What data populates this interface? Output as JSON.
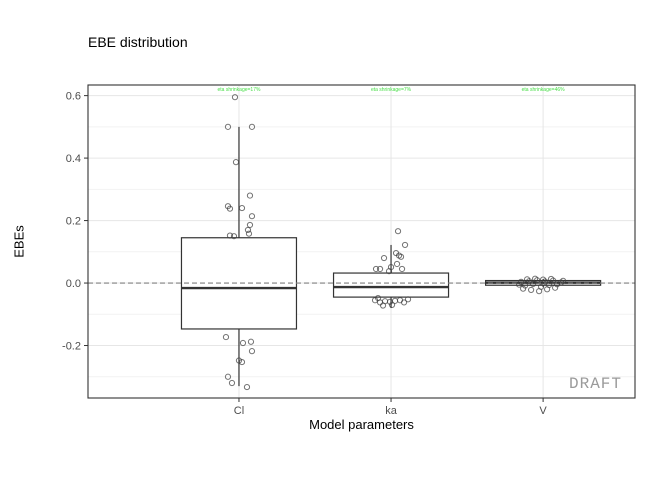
{
  "title": "EBE distribution",
  "watermark": "DRAFT",
  "colors": {
    "box_stroke": "#333333",
    "box_fill": "#ffffff",
    "median_stroke": "#333333",
    "point_stroke": "#3d3d3d",
    "grid_major": "#e6e6e6",
    "grid_minor": "#f2f2f2",
    "panel_border": "#333333",
    "panel_bg": "#ffffff",
    "zero_line": "#7f7f7f",
    "tick_label": "#4d4d4d",
    "tick_mark": "#333333",
    "shrinkage_text": "#44dd44",
    "watermark_color": "#9a9a9a"
  },
  "chart_data": {
    "type": "boxplot",
    "title": "EBE distribution",
    "xlabel": "Model parameters",
    "ylabel": "EBEs",
    "categories": [
      "Cl",
      "ka",
      "V"
    ],
    "ylim": [
      -0.368,
      0.634
    ],
    "grid": true,
    "legend": "none",
    "y_major_ticks": [
      {
        "value": 0.6,
        "label": "0.6"
      },
      {
        "value": 0.4,
        "label": "0.4"
      },
      {
        "value": 0.2,
        "label": "0.2"
      },
      {
        "value": 0.0,
        "label": "0.0"
      },
      {
        "value": -0.2,
        "label": "-0.2"
      }
    ],
    "y_minor_ticks": [
      0.5,
      0.3,
      0.1,
      -0.1,
      -0.3
    ],
    "reference_line": {
      "y": 0,
      "style": "dashed"
    },
    "series": [
      {
        "name": "Cl",
        "q1": -0.147,
        "median": -0.016,
        "q3": 0.145,
        "whisker_low": -0.33,
        "whisker_high": 0.5,
        "shrinkage_label": "eta shrinkage=17%",
        "points_dx_value": [
          [
            -4,
            0.595
          ],
          [
            -11,
            0.5
          ],
          [
            13,
            0.5
          ],
          [
            -3,
            0.387
          ],
          [
            11,
            0.28
          ],
          [
            -11,
            0.246
          ],
          [
            -9,
            0.238
          ],
          [
            3,
            0.24
          ],
          [
            13,
            0.214
          ],
          [
            11,
            0.186
          ],
          [
            9,
            0.17
          ],
          [
            -9,
            0.152
          ],
          [
            -5,
            0.15
          ],
          [
            10,
            0.158
          ],
          [
            -13,
            -0.173
          ],
          [
            4,
            -0.192
          ],
          [
            12,
            -0.188
          ],
          [
            13,
            -0.218
          ],
          [
            0,
            -0.248
          ],
          [
            3,
            -0.253
          ],
          [
            -11,
            -0.3
          ],
          [
            -7,
            -0.32
          ],
          [
            8,
            -0.333
          ]
        ]
      },
      {
        "name": "ka",
        "q1": -0.045,
        "median": -0.013,
        "q3": 0.032,
        "whisker_low": -0.08,
        "whisker_high": 0.122,
        "shrinkage_label": "eta shrinkage=7%",
        "points_dx_value": [
          [
            7,
            0.166
          ],
          [
            14,
            0.122
          ],
          [
            5,
            0.096
          ],
          [
            8,
            0.088
          ],
          [
            10,
            0.084
          ],
          [
            -7,
            0.08
          ],
          [
            6,
            0.061
          ],
          [
            0,
            0.051
          ],
          [
            -15,
            0.045
          ],
          [
            -11,
            0.045
          ],
          [
            11,
            0.045
          ],
          [
            -2,
            0.038
          ],
          [
            -16,
            -0.055
          ],
          [
            -11,
            -0.062
          ],
          [
            -6,
            -0.058
          ],
          [
            -1,
            -0.06
          ],
          [
            4,
            -0.057
          ],
          [
            9,
            -0.055
          ],
          [
            -8,
            -0.072
          ],
          [
            1,
            -0.07
          ],
          [
            13,
            -0.062
          ],
          [
            -13,
            -0.048
          ],
          [
            17,
            -0.052
          ]
        ]
      },
      {
        "name": "V",
        "q1": -0.007,
        "median": 0.001,
        "q3": 0.008,
        "whisker_low": -0.013,
        "whisker_high": 0.013,
        "shrinkage_label": "eta shrinkage=46%",
        "points_dx_value": [
          [
            -22,
            0.004
          ],
          [
            -18,
            -0.008
          ],
          [
            -14,
            0.006
          ],
          [
            -10,
            -0.003
          ],
          [
            -6,
            0.009
          ],
          [
            -2,
            -0.012
          ],
          [
            2,
            0.005
          ],
          [
            6,
            -0.006
          ],
          [
            10,
            0.008
          ],
          [
            14,
            -0.004
          ],
          [
            -16,
            0.012
          ],
          [
            -8,
            0.014
          ],
          [
            0,
            0.011
          ],
          [
            8,
            0.013
          ],
          [
            -20,
            -0.018
          ],
          [
            -12,
            -0.022
          ],
          [
            -4,
            -0.026
          ],
          [
            4,
            -0.02
          ],
          [
            12,
            -0.015
          ],
          [
            18,
            0.002
          ],
          [
            -24,
            -0.005
          ],
          [
            20,
            0.007
          ]
        ]
      }
    ]
  }
}
